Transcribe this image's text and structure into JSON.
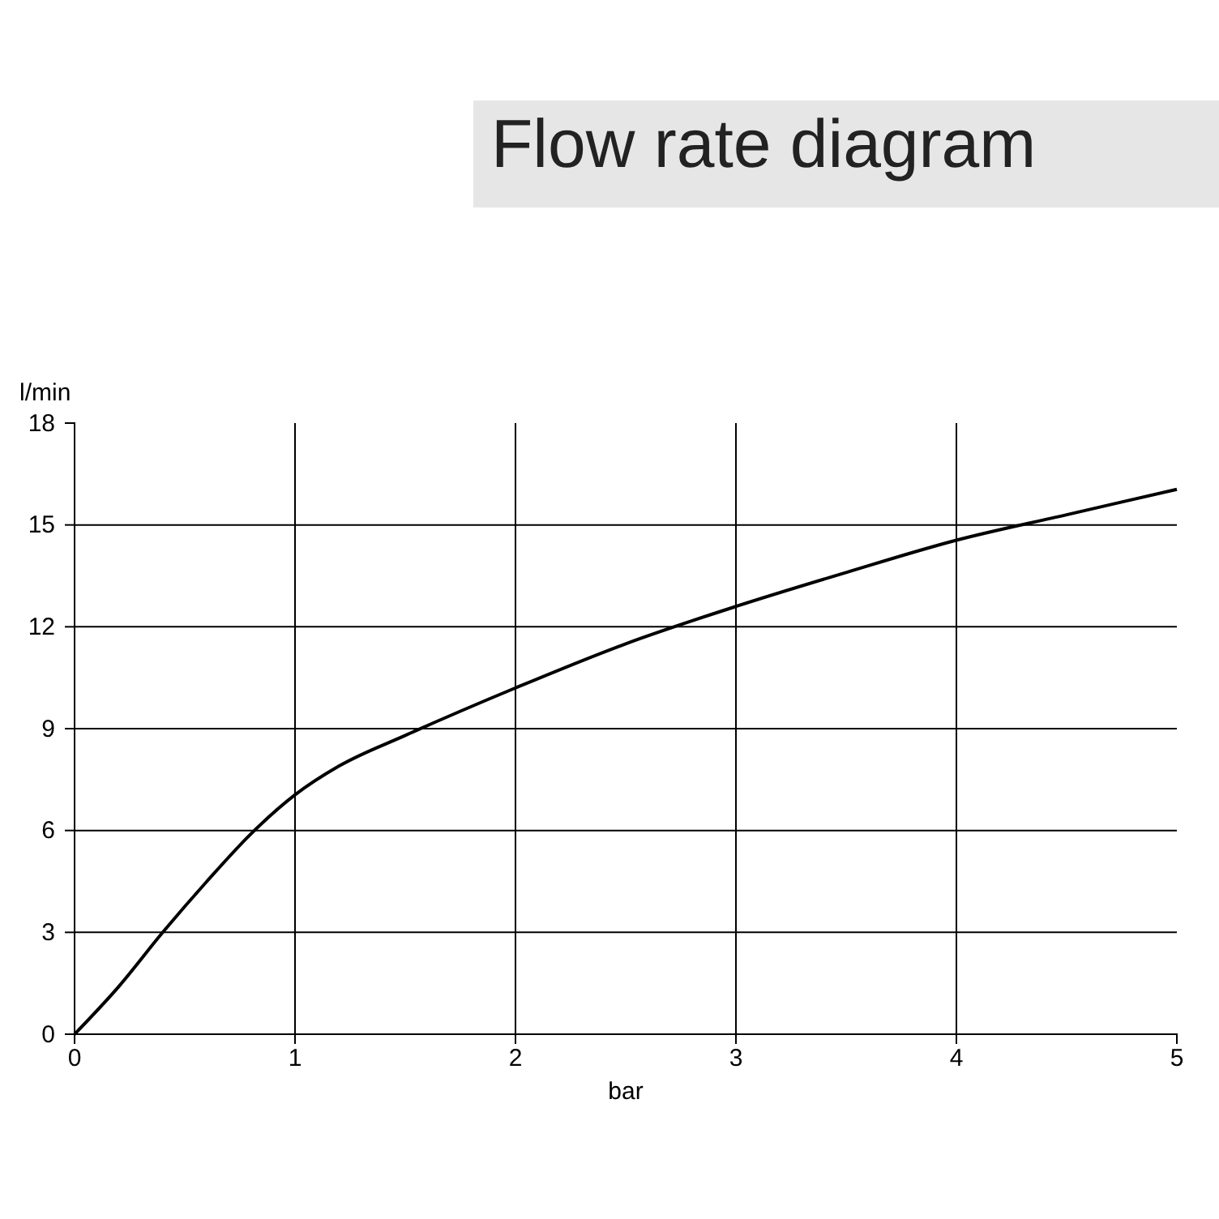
{
  "chart_data": {
    "type": "line",
    "title": "Flow rate diagram",
    "xlabel": "bar",
    "ylabel": "l/min",
    "x": [
      0,
      0.2,
      0.4,
      0.6,
      0.8,
      1,
      1.2,
      1.5,
      2,
      2.5,
      3,
      3.5,
      4,
      4.5,
      5
    ],
    "series": [
      {
        "color": "#000000",
        "values": [
          0,
          1.4,
          3,
          4.5,
          5.9,
          7.05,
          7.9,
          8.8,
          10.2,
          11.5,
          12.6,
          13.6,
          14.55,
          15.3,
          16.05
        ]
      }
    ],
    "xlim": [
      0,
      5
    ],
    "xticks": [
      0,
      1,
      2,
      3,
      4,
      5
    ],
    "ylim": [
      0,
      18
    ],
    "yticks": [
      0,
      3,
      6,
      9,
      12,
      15,
      18
    ],
    "grid": true,
    "marker": "none",
    "line_style": "solid"
  }
}
